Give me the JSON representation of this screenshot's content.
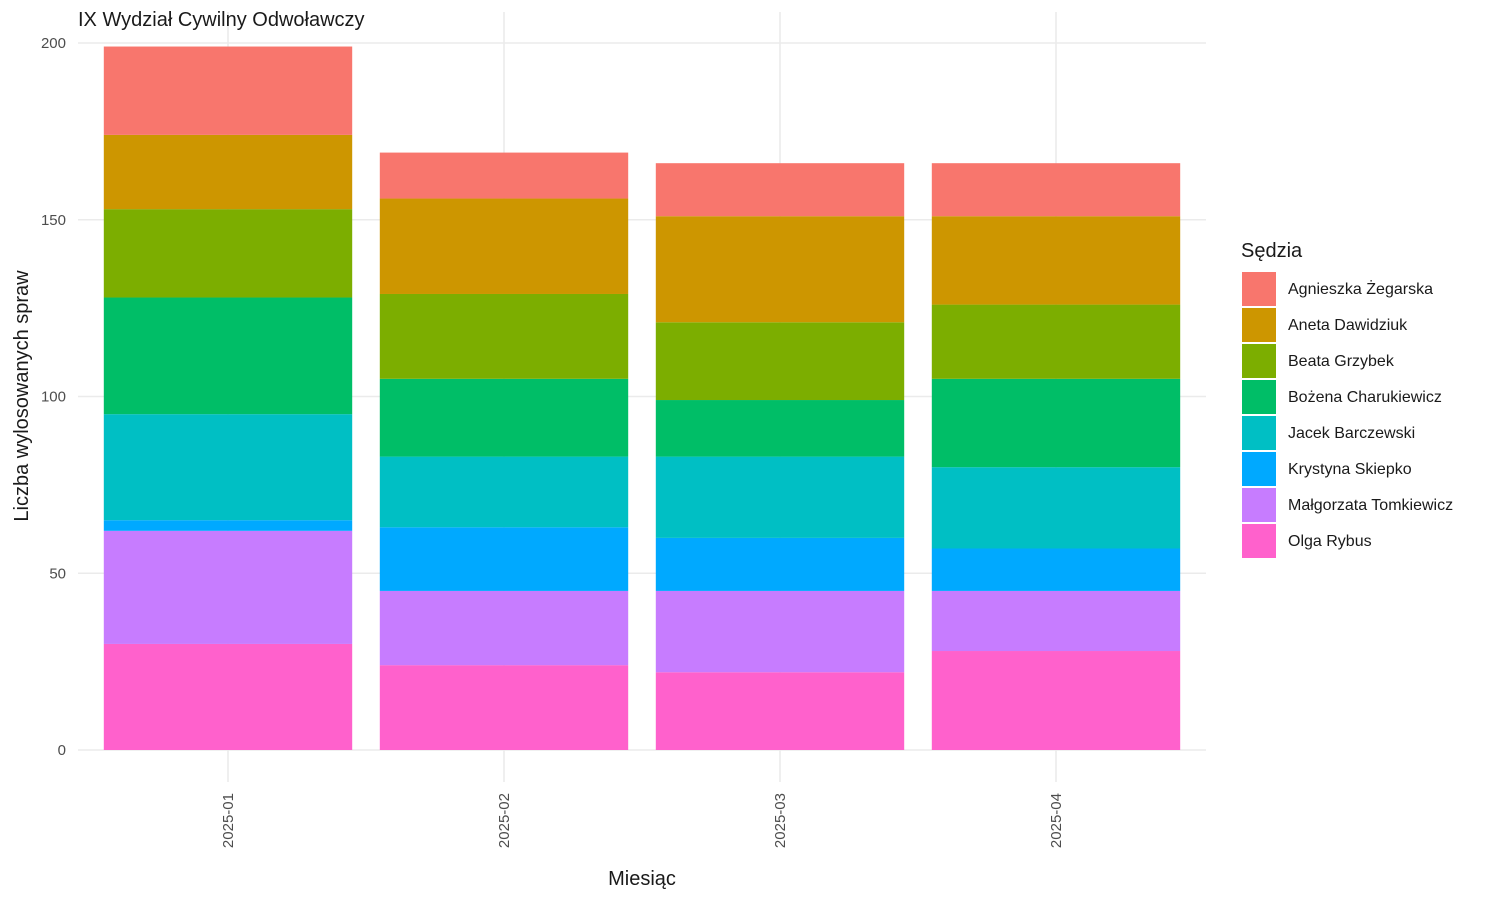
{
  "chart_data": {
    "type": "bar",
    "stacked": true,
    "title": "IX Wydział Cywilny Odwoławczy",
    "xlabel": "Miesiąc",
    "ylabel": "Liczba wylosowanych spraw",
    "categories": [
      "2025-01",
      "2025-02",
      "2025-03",
      "2025-04"
    ],
    "ylim": [
      0,
      200
    ],
    "yticks": [
      0,
      50,
      100,
      150,
      200
    ],
    "grid": true,
    "legend": {
      "title": "Sędzia",
      "position": "right"
    },
    "series": [
      {
        "name": "Agnieszka Żegarska",
        "color": "#F8766D",
        "values": [
          25,
          13,
          15,
          15
        ]
      },
      {
        "name": "Aneta Dawidziuk",
        "color": "#CD9600",
        "values": [
          21,
          27,
          30,
          25
        ]
      },
      {
        "name": "Beata Grzybek",
        "color": "#7CAE00",
        "values": [
          25,
          24,
          22,
          21
        ]
      },
      {
        "name": "Bożena Charukiewicz",
        "color": "#00BE67",
        "values": [
          33,
          22,
          16,
          25
        ]
      },
      {
        "name": "Jacek Barczewski",
        "color": "#00BFC4",
        "values": [
          30,
          20,
          23,
          23
        ]
      },
      {
        "name": "Krystyna Skiepko",
        "color": "#00A9FF",
        "values": [
          3,
          18,
          15,
          12
        ]
      },
      {
        "name": "Małgorzata Tomkiewicz",
        "color": "#C77CFF",
        "values": [
          32,
          21,
          23,
          17
        ]
      },
      {
        "name": "Olga Rybus",
        "color": "#FF61CC",
        "values": [
          30,
          24,
          22,
          28
        ]
      }
    ]
  }
}
